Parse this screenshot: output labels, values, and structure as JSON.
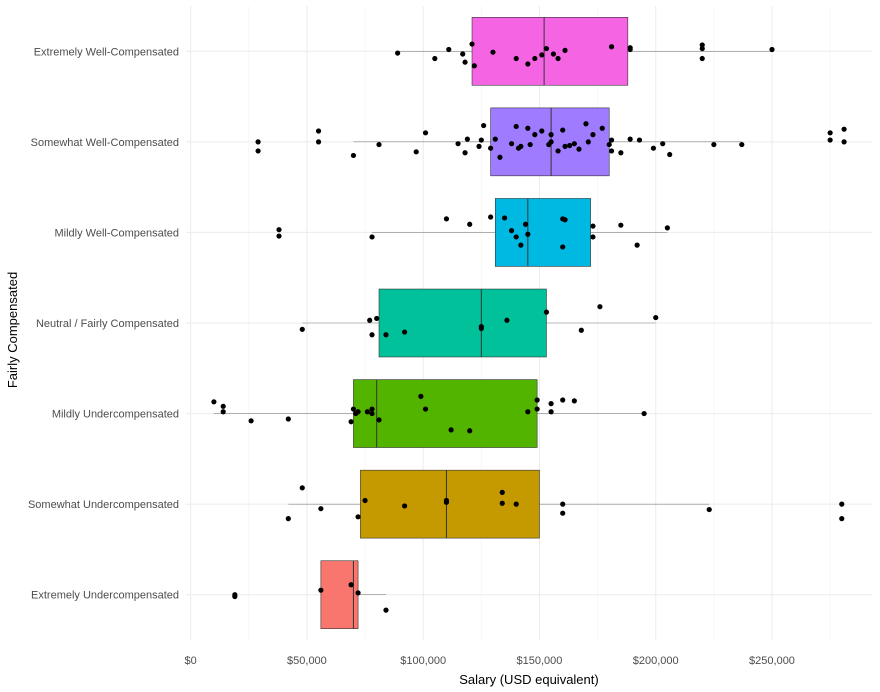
{
  "chart_data": {
    "type": "boxplot",
    "orientation": "horizontal",
    "xlabel": "Salary (USD equivalent)",
    "ylabel": "Fairly Compensated",
    "xlim": [
      -2000,
      293000
    ],
    "x_ticks": [
      0,
      50000,
      100000,
      150000,
      200000,
      250000
    ],
    "x_tick_labels": [
      "$0",
      "$50,000",
      "$100,000",
      "$150,000",
      "$200,000",
      "$250,000"
    ],
    "grid": true,
    "legend": "none",
    "categories": [
      {
        "label": "Extremely Well-Compensated",
        "color": "#F564E3",
        "q1": 121000,
        "median": 152000,
        "q3": 188000,
        "whisker_low": 89000,
        "whisker_high": 250000,
        "points": [
          [
            89000,
            0.02
          ],
          [
            111000,
            -0.02
          ],
          [
            105000,
            0.08
          ],
          [
            117000,
            0.03
          ],
          [
            121000,
            -0.08
          ],
          [
            118000,
            0.12
          ],
          [
            122000,
            0.16
          ],
          [
            130000,
            0.01
          ],
          [
            140000,
            0.08
          ],
          [
            145000,
            0.14
          ],
          [
            148000,
            0.08
          ],
          [
            151000,
            0.04
          ],
          [
            153000,
            -0.03
          ],
          [
            156000,
            0.03
          ],
          [
            158000,
            0.08
          ],
          [
            161000,
            -0.01
          ],
          [
            181000,
            -0.05
          ],
          [
            189000,
            -0.04
          ],
          [
            189000,
            -0.02
          ],
          [
            220000,
            -0.07
          ],
          [
            220000,
            -0.03
          ],
          [
            220000,
            0.08
          ],
          [
            250000,
            -0.02
          ]
        ]
      },
      {
        "label": "Somewhat Well-Compensated",
        "color": "#9E7BFF",
        "q1": 129000,
        "median": 155000,
        "q3": 180000,
        "whisker_low": 70000,
        "whisker_high": 237000,
        "points": [
          [
            29000,
            0.0
          ],
          [
            29000,
            0.1
          ],
          [
            55000,
            -0.12
          ],
          [
            55000,
            0.0
          ],
          [
            70000,
            0.15
          ],
          [
            81000,
            0.03
          ],
          [
            97000,
            0.11
          ],
          [
            101000,
            -0.1
          ],
          [
            115000,
            0.02
          ],
          [
            118000,
            0.12
          ],
          [
            119000,
            -0.03
          ],
          [
            124000,
            0.05
          ],
          [
            125000,
            -0.02
          ],
          [
            126000,
            -0.18
          ],
          [
            129000,
            0.07
          ],
          [
            131000,
            -0.03
          ],
          [
            133000,
            0.17
          ],
          [
            138000,
            0.02
          ],
          [
            140000,
            -0.17
          ],
          [
            141000,
            0.07
          ],
          [
            142000,
            0.05
          ],
          [
            145000,
            -0.15
          ],
          [
            146000,
            0.03
          ],
          [
            148000,
            -0.08
          ],
          [
            151000,
            -0.12
          ],
          [
            154000,
            0.03
          ],
          [
            155000,
            0.0
          ],
          [
            155000,
            -0.08
          ],
          [
            158000,
            0.1
          ],
          [
            160000,
            -0.13
          ],
          [
            161000,
            0.05
          ],
          [
            163000,
            0.04
          ],
          [
            165000,
            0.02
          ],
          [
            167000,
            0.08
          ],
          [
            170000,
            -0.2
          ],
          [
            171000,
            0.0
          ],
          [
            173000,
            -0.08
          ],
          [
            177000,
            -0.15
          ],
          [
            180000,
            0.03
          ],
          [
            181000,
            0.1
          ],
          [
            181000,
            -0.02
          ],
          [
            185000,
            0.12
          ],
          [
            189000,
            -0.03
          ],
          [
            193000,
            -0.02
          ],
          [
            199000,
            0.07
          ],
          [
            203000,
            0.02
          ],
          [
            206000,
            0.14
          ],
          [
            225000,
            0.03
          ],
          [
            237000,
            0.03
          ],
          [
            275000,
            -0.1
          ],
          [
            275000,
            -0.02
          ],
          [
            281000,
            0.0
          ],
          [
            281000,
            -0.14
          ]
        ]
      },
      {
        "label": "Mildly Well-Compensated",
        "color": "#00B9E3",
        "q1": 131000,
        "median": 145000,
        "q3": 172000,
        "whisker_low": 78000,
        "whisker_high": 205000,
        "points": [
          [
            38000,
            -0.03
          ],
          [
            38000,
            0.04
          ],
          [
            78000,
            0.05
          ],
          [
            110000,
            -0.15
          ],
          [
            120000,
            -0.09
          ],
          [
            129000,
            -0.17
          ],
          [
            135000,
            -0.16
          ],
          [
            138000,
            -0.02
          ],
          [
            140000,
            0.05
          ],
          [
            142000,
            0.14
          ],
          [
            144000,
            -0.09
          ],
          [
            145000,
            0.02
          ],
          [
            160000,
            -0.15
          ],
          [
            160000,
            0.16
          ],
          [
            161000,
            -0.14
          ],
          [
            173000,
            -0.07
          ],
          [
            173000,
            0.05
          ],
          [
            185000,
            -0.08
          ],
          [
            192000,
            0.14
          ],
          [
            205000,
            -0.05
          ]
        ]
      },
      {
        "label": "Neutral / Fairly Compensated",
        "color": "#00C19A",
        "q1": 81000,
        "median": 125000,
        "q3": 153000,
        "whisker_low": 48000,
        "whisker_high": 200000,
        "points": [
          [
            48000,
            0.07
          ],
          [
            77000,
            -0.03
          ],
          [
            78000,
            0.13
          ],
          [
            80000,
            -0.05
          ],
          [
            84000,
            0.13
          ],
          [
            92000,
            0.1
          ],
          [
            125000,
            0.04
          ],
          [
            125000,
            0.06
          ],
          [
            136000,
            -0.03
          ],
          [
            153000,
            -0.12
          ],
          [
            168000,
            0.08
          ],
          [
            176000,
            -0.18
          ],
          [
            200000,
            -0.06
          ]
        ]
      },
      {
        "label": "Mildly Undercompensated",
        "color": "#53B400",
        "q1": 70000,
        "median": 80000,
        "q3": 149000,
        "whisker_low": 10000,
        "whisker_high": 195000,
        "points": [
          [
            10000,
            -0.13
          ],
          [
            14000,
            -0.08
          ],
          [
            14000,
            -0.02
          ],
          [
            26000,
            0.08
          ],
          [
            42000,
            0.06
          ],
          [
            69000,
            0.09
          ],
          [
            70000,
            -0.05
          ],
          [
            71000,
            0.0
          ],
          [
            72000,
            -0.02
          ],
          [
            76000,
            -0.02
          ],
          [
            78000,
            -0.05
          ],
          [
            78000,
            0.0
          ],
          [
            81000,
            0.07
          ],
          [
            99000,
            -0.19
          ],
          [
            101000,
            -0.05
          ],
          [
            112000,
            0.18
          ],
          [
            120000,
            0.19
          ],
          [
            145000,
            -0.02
          ],
          [
            149000,
            -0.15
          ],
          [
            149000,
            -0.05
          ],
          [
            155000,
            -0.11
          ],
          [
            155000,
            -0.02
          ],
          [
            160000,
            -0.15
          ],
          [
            165000,
            -0.14
          ],
          [
            195000,
            0.0
          ]
        ]
      },
      {
        "label": "Somewhat Undercompensated",
        "color": "#C49A00",
        "q1": 73000,
        "median": 110000,
        "q3": 150000,
        "whisker_low": 42000,
        "whisker_high": 223000,
        "points": [
          [
            42000,
            0.16
          ],
          [
            48000,
            -0.18
          ],
          [
            56000,
            0.05
          ],
          [
            72000,
            0.14
          ],
          [
            75000,
            -0.04
          ],
          [
            92000,
            0.02
          ],
          [
            110000,
            -0.04
          ],
          [
            110000,
            -0.02
          ],
          [
            134000,
            -0.13
          ],
          [
            134000,
            -0.01
          ],
          [
            140000,
            0.0
          ],
          [
            160000,
            0.0
          ],
          [
            160000,
            0.1
          ],
          [
            223000,
            0.06
          ],
          [
            280000,
            0.0
          ],
          [
            280000,
            0.16
          ]
        ]
      },
      {
        "label": "Extremely Undercompensated",
        "color": "#F8766D",
        "q1": 56000,
        "median": 70000,
        "q3": 72000,
        "whisker_low": 56000,
        "whisker_high": 84000,
        "points": [
          [
            19000,
            0.0
          ],
          [
            19000,
            0.02
          ],
          [
            56000,
            -0.05
          ],
          [
            69000,
            -0.11
          ],
          [
            72000,
            -0.02
          ],
          [
            84000,
            0.17
          ]
        ]
      }
    ]
  }
}
